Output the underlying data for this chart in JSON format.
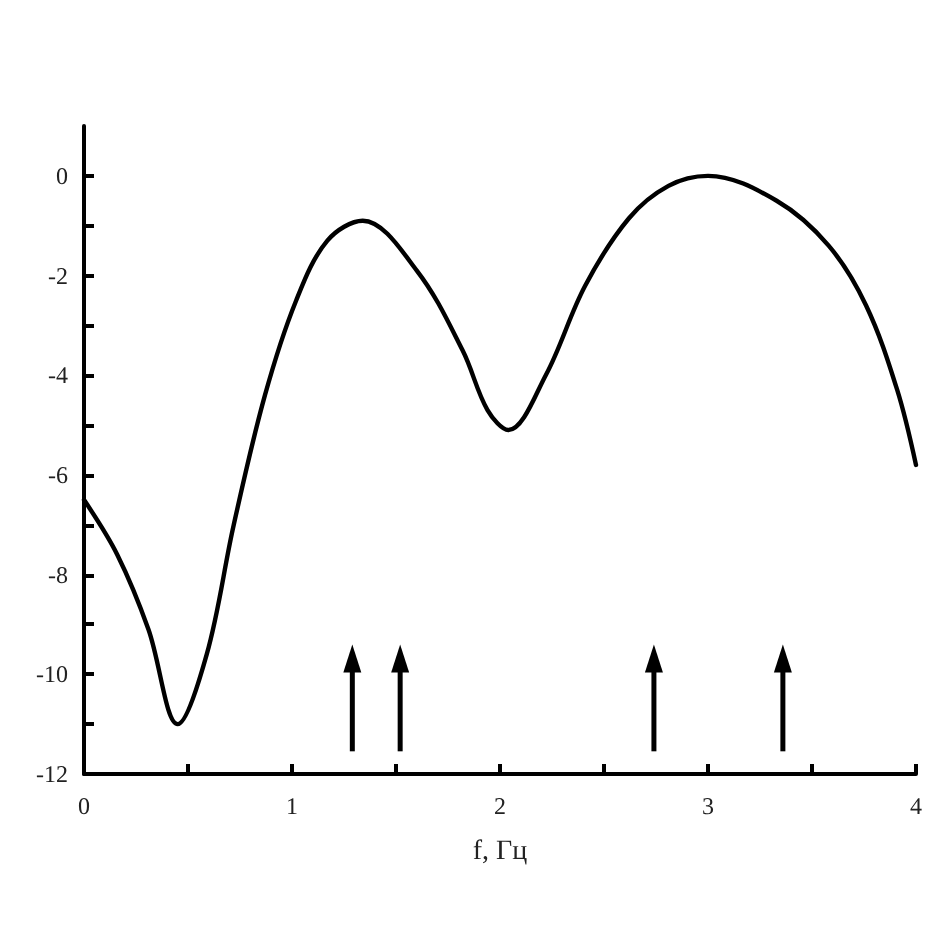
{
  "chart_data": {
    "type": "line",
    "xlabel": "f, Гц",
    "color": "#000000",
    "x": [
      0,
      0.16,
      0.31,
      0.45,
      0.59,
      0.72,
      0.87,
      1.02,
      1.17,
      1.34,
      1.6,
      1.82,
      1.94,
      2.04,
      2.22,
      2.41,
      2.62,
      2.81,
      3.0,
      3.33,
      3.58,
      3.76,
      3.91,
      4.0
    ],
    "values": [
      -6.5,
      -7.6,
      -9.1,
      -11.0,
      -9.6,
      -7.0,
      -4.4,
      -2.5,
      -1.3,
      -0.9,
      -1.9,
      -3.5,
      -4.7,
      -5.1,
      -4.0,
      -2.2,
      -0.85,
      -0.2,
      0,
      -0.5,
      -1.4,
      -2.6,
      -4.3,
      -5.8
    ],
    "xlim": [
      0,
      4
    ],
    "xticks": [
      0,
      1,
      2,
      3,
      4
    ],
    "ylim": [
      -12,
      1
    ],
    "yticks": [
      -12,
      -10,
      -8,
      -6,
      -4,
      -2,
      0
    ],
    "ref_lines": [
      {
        "axis": "x",
        "value": 1.29
      },
      {
        "axis": "x",
        "value": 1.52
      },
      {
        "axis": "x",
        "value": 2.74
      },
      {
        "axis": "x",
        "value": 3.36
      }
    ],
    "marker": "none",
    "line_style": "solid"
  }
}
